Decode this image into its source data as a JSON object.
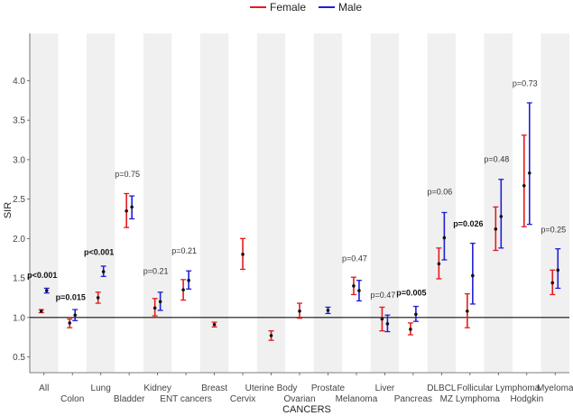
{
  "chart_data": {
    "type": "scatter",
    "xlabel": "CANCERS",
    "ylabel": "SIR",
    "ylim": [
      0.3,
      4.6
    ],
    "y_ticks": [
      "0.5",
      "1.0",
      "1.5",
      "2.0",
      "2.5",
      "3.0",
      "3.5",
      "4.0"
    ],
    "reference_line": 1.0,
    "legend_position": "top",
    "grid": "alternating vertical bands",
    "categories": [
      "All",
      "Colon",
      "Lung",
      "Bladder",
      "Kidney",
      "ENT cancers",
      "Breast",
      "Cervix",
      "Uterine Body",
      "Ovarian",
      "Prostate",
      "Melanoma",
      "Liver",
      "Pancreas",
      "DLBCL",
      "MZ Lymphoma",
      "Follicular Lymphoma",
      "Hodgkin",
      "Myeloma"
    ],
    "category_label_row": [
      0,
      1,
      0,
      1,
      0,
      1,
      0,
      1,
      0,
      1,
      0,
      1,
      0,
      1,
      0,
      1,
      0,
      1,
      0
    ],
    "series": [
      {
        "name": "Female",
        "color": "#e41a1c",
        "points": [
          {
            "category": "All",
            "value": 1.08,
            "lo": 1.06,
            "hi": 1.1
          },
          {
            "category": "Colon",
            "value": 0.93,
            "lo": 0.87,
            "hi": 0.98
          },
          {
            "category": "Lung",
            "value": 1.25,
            "lo": 1.18,
            "hi": 1.32
          },
          {
            "category": "Bladder",
            "value": 2.35,
            "lo": 2.14,
            "hi": 2.57
          },
          {
            "category": "Kidney",
            "value": 1.12,
            "lo": 1.02,
            "hi": 1.24
          },
          {
            "category": "ENT cancers",
            "value": 1.35,
            "lo": 1.22,
            "hi": 1.48
          },
          {
            "category": "Breast",
            "value": 0.91,
            "lo": 0.88,
            "hi": 0.94
          },
          {
            "category": "Cervix",
            "value": 1.8,
            "lo": 1.61,
            "hi": 2.0
          },
          {
            "category": "Uterine Body",
            "value": 0.77,
            "lo": 0.71,
            "hi": 0.83
          },
          {
            "category": "Ovarian",
            "value": 1.08,
            "lo": 0.99,
            "hi": 1.18
          },
          {
            "category": "Melanoma",
            "value": 1.4,
            "lo": 1.29,
            "hi": 1.51
          },
          {
            "category": "Liver",
            "value": 0.98,
            "lo": 0.83,
            "hi": 1.13
          },
          {
            "category": "Pancreas",
            "value": 0.85,
            "lo": 0.78,
            "hi": 0.93
          },
          {
            "category": "DLBCL",
            "value": 1.68,
            "lo": 1.49,
            "hi": 1.88
          },
          {
            "category": "MZ Lymphoma",
            "value": 1.08,
            "lo": 0.87,
            "hi": 1.3
          },
          {
            "category": "Follicular Lymphoma",
            "value": 2.12,
            "lo": 1.85,
            "hi": 2.4
          },
          {
            "category": "Hodgkin",
            "value": 2.67,
            "lo": 2.15,
            "hi": 3.31
          },
          {
            "category": "Myeloma",
            "value": 1.44,
            "lo": 1.29,
            "hi": 1.6
          }
        ]
      },
      {
        "name": "Male",
        "color": "#1f1fd6",
        "points": [
          {
            "category": "All",
            "value": 1.34,
            "lo": 1.31,
            "hi": 1.37
          },
          {
            "category": "Colon",
            "value": 1.03,
            "lo": 0.96,
            "hi": 1.1
          },
          {
            "category": "Lung",
            "value": 1.58,
            "lo": 1.52,
            "hi": 1.65
          },
          {
            "category": "Bladder",
            "value": 2.4,
            "lo": 2.25,
            "hi": 2.54
          },
          {
            "category": "Kidney",
            "value": 1.2,
            "lo": 1.09,
            "hi": 1.32
          },
          {
            "category": "ENT cancers",
            "value": 1.47,
            "lo": 1.36,
            "hi": 1.59
          },
          {
            "category": "Prostate",
            "value": 1.09,
            "lo": 1.05,
            "hi": 1.13
          },
          {
            "category": "Melanoma",
            "value": 1.34,
            "lo": 1.21,
            "hi": 1.47
          },
          {
            "category": "Liver",
            "value": 0.92,
            "lo": 0.82,
            "hi": 1.03
          },
          {
            "category": "Pancreas",
            "value": 1.04,
            "lo": 0.95,
            "hi": 1.14
          },
          {
            "category": "DLBCL",
            "value": 2.01,
            "lo": 1.73,
            "hi": 2.33
          },
          {
            "category": "MZ Lymphoma",
            "value": 1.53,
            "lo": 1.17,
            "hi": 1.94
          },
          {
            "category": "Follicular Lymphoma",
            "value": 2.28,
            "lo": 1.88,
            "hi": 2.75
          },
          {
            "category": "Hodgkin",
            "value": 2.83,
            "lo": 2.18,
            "hi": 3.72
          },
          {
            "category": "Myeloma",
            "value": 1.6,
            "lo": 1.37,
            "hi": 1.87
          }
        ]
      }
    ],
    "annotations": [
      {
        "category": "All",
        "text": "p<0.001",
        "bold": true,
        "y": 1.5
      },
      {
        "category": "Colon",
        "text": "p=0.015",
        "bold": true,
        "y": 1.22
      },
      {
        "category": "Lung",
        "text": "p<0.001",
        "bold": true,
        "y": 1.79
      },
      {
        "category": "Bladder",
        "text": "p=0.75",
        "bold": false,
        "y": 2.78
      },
      {
        "category": "Kidney",
        "text": "p=0.21",
        "bold": false,
        "y": 1.55
      },
      {
        "category": "ENT cancers",
        "text": "p=0.21",
        "bold": false,
        "y": 1.81
      },
      {
        "category": "Melanoma",
        "text": "p=0.47",
        "bold": false,
        "y": 1.71
      },
      {
        "category": "Liver",
        "text": "p=0.47",
        "bold": false,
        "y": 1.25
      },
      {
        "category": "Pancreas",
        "text": "p=0.005",
        "bold": true,
        "y": 1.28
      },
      {
        "category": "DLBCL",
        "text": "p=0.06",
        "bold": false,
        "y": 2.56
      },
      {
        "category": "MZ Lymphoma",
        "text": "p=0.026",
        "bold": true,
        "y": 2.15
      },
      {
        "category": "Follicular Lymphoma",
        "text": "p=0.48",
        "bold": false,
        "y": 2.97
      },
      {
        "category": "Hodgkin",
        "text": "p=0.73",
        "bold": false,
        "y": 3.93
      },
      {
        "category": "Myeloma",
        "text": "p=0.25",
        "bold": false,
        "y": 2.08
      }
    ]
  }
}
